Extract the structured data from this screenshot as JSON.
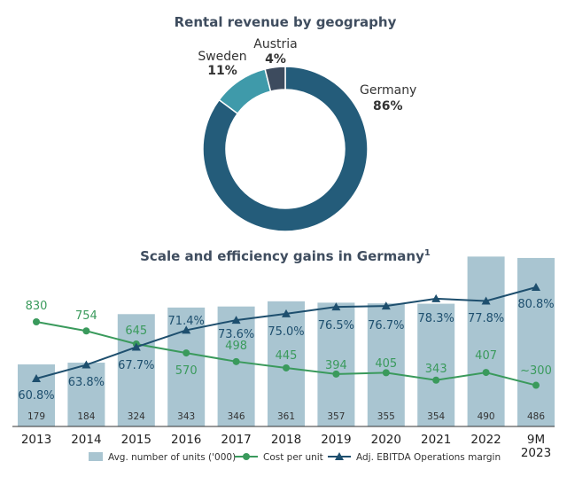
{
  "colors": {
    "germany": "#245c7a",
    "sweden": "#3f9aaa",
    "austria": "#3d4b5e",
    "bar": "#a9c5d1",
    "cost": "#3a9a5c",
    "ebitda": "#1e4f6e",
    "title": "#3f4d5f"
  },
  "chart_data": [
    {
      "type": "pie",
      "title": "Rental revenue by geography",
      "donut": true,
      "slices": [
        {
          "label": "Germany",
          "value": 86,
          "pct_label": "86%"
        },
        {
          "label": "Sweden",
          "value": 11,
          "pct_label": "11%"
        },
        {
          "label": "Austria",
          "value": 4,
          "pct_label": "4%"
        }
      ]
    },
    {
      "type": "bar",
      "title": "Scale and efficiency gains in Germany",
      "title_superscript": "1",
      "categories": [
        "2013",
        "2014",
        "2015",
        "2016",
        "2017",
        "2018",
        "2019",
        "2020",
        "2021",
        "2022",
        "9M\n2023"
      ],
      "series": [
        {
          "name": "Avg. number of units ('000)",
          "kind": "bar",
          "values": [
            179,
            184,
            324,
            343,
            346,
            361,
            357,
            355,
            354,
            490,
            486
          ],
          "labels": [
            "179",
            "184",
            "324",
            "343",
            "346",
            "361",
            "357",
            "355",
            "354",
            "490",
            "486"
          ]
        },
        {
          "name": "Cost per unit",
          "kind": "line",
          "marker": "circle",
          "values": [
            830,
            754,
            645,
            570,
            498,
            445,
            394,
            405,
            343,
            407,
            300
          ],
          "labels": [
            "830",
            "754",
            "645",
            "570",
            "498",
            "445",
            "394",
            "405",
            "343",
            "407",
            "~300"
          ]
        },
        {
          "name": "Adj. EBITDA Operations margin",
          "kind": "line",
          "marker": "triangle",
          "values": [
            60.8,
            63.8,
            67.7,
            71.4,
            73.6,
            75.0,
            76.5,
            76.7,
            78.3,
            77.8,
            80.8
          ],
          "labels": [
            "60.8%",
            "63.8%",
            "67.7%",
            "71.4%",
            "73.6%",
            "75.0%",
            "76.5%",
            "76.7%",
            "78.3%",
            "77.8%",
            "80.8%"
          ]
        }
      ],
      "legend": [
        "Avg. number of units ('000)",
        "Cost per unit",
        "Adj. EBITDA Operations margin"
      ]
    }
  ]
}
